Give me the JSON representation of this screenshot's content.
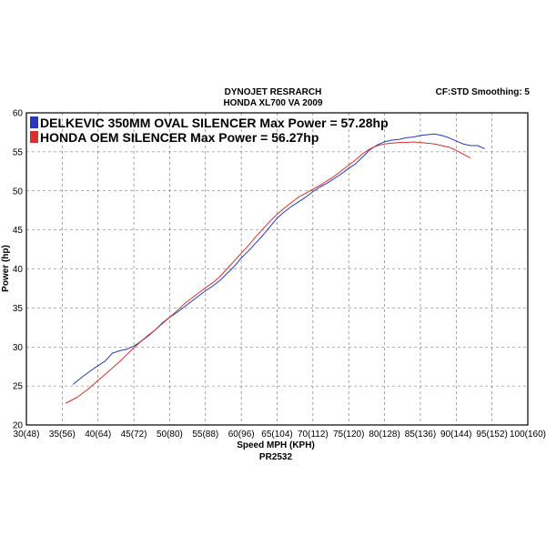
{
  "header": {
    "title_line1": "DYNOJET RESRARCH",
    "title_line2": "HONDA XL700 VA  2009",
    "corner": "CF:STD Smoothing: 5",
    "footer": "PR2532"
  },
  "chart_data": {
    "type": "line",
    "xlabel": "Speed MPH (KPH)",
    "ylabel": "Power (hp)",
    "xlim": [
      30,
      100
    ],
    "ylim": [
      20,
      60
    ],
    "grid": true,
    "legend_position": "top-left",
    "x_tick_values": [
      30,
      35,
      40,
      45,
      50,
      55,
      60,
      65,
      70,
      75,
      80,
      85,
      90,
      95,
      100
    ],
    "x_tick_labels": [
      "30(48)",
      "35(56)",
      "40(64)",
      "45(72)",
      "50(80)",
      "55(88)",
      "60(96)",
      "65(104)",
      "70(112)",
      "75(120)",
      "80(128)",
      "85(136)",
      "90(144)",
      "95(152)",
      "100(160)"
    ],
    "y_tick_values": [
      20,
      25,
      30,
      35,
      40,
      45,
      50,
      55,
      60
    ],
    "y_tick_labels": [
      "20",
      "25",
      "30",
      "35",
      "40",
      "45",
      "50",
      "55",
      "60"
    ],
    "series": [
      {
        "name": "DELKEVIC 350MM OVAL SILENCER  Max Power = 57.28hp",
        "color": "#2b3ab4",
        "x": [
          36.5,
          38,
          39.5,
          41,
          42,
          43,
          44,
          45,
          46,
          47,
          48,
          49,
          50,
          51,
          52,
          53,
          54,
          55,
          56,
          57,
          58,
          59,
          60,
          61,
          62,
          63,
          64,
          65,
          66,
          67,
          68,
          69,
          70,
          71,
          72,
          73,
          74,
          75,
          76,
          77,
          78,
          79,
          80,
          81,
          82,
          83,
          84,
          85,
          86,
          87,
          88,
          89,
          90,
          91,
          92,
          93,
          94
        ],
        "y": [
          25.2,
          26.3,
          27.3,
          28.2,
          29.2,
          29.5,
          29.7,
          30.1,
          30.7,
          31.4,
          32.2,
          33.1,
          33.8,
          34.4,
          35.1,
          35.8,
          36.5,
          37.2,
          37.8,
          38.5,
          39.4,
          40.3,
          41.4,
          42.3,
          43.3,
          44.3,
          45.4,
          46.5,
          47.3,
          48.0,
          48.6,
          49.2,
          49.9,
          50.5,
          51.0,
          51.6,
          52.2,
          52.9,
          53.5,
          54.4,
          55.3,
          55.9,
          56.3,
          56.5,
          56.6,
          56.8,
          56.9,
          57.1,
          57.2,
          57.28,
          57.1,
          56.8,
          56.4,
          56.0,
          55.8,
          55.8,
          55.4
        ]
      },
      {
        "name": "HONDA OEM SILENCER Max Power = 56.27hp",
        "color": "#d23232",
        "x": [
          35.5,
          37,
          38.5,
          40,
          41,
          42,
          43,
          44,
          45,
          46,
          47,
          48,
          49,
          50,
          51,
          52,
          53,
          54,
          55,
          56,
          57,
          58,
          59,
          60,
          61,
          62,
          63,
          64,
          65,
          66,
          67,
          68,
          69,
          70,
          71,
          72,
          73,
          74,
          75,
          76,
          77,
          78,
          79,
          80,
          81,
          82,
          83,
          84,
          85,
          86,
          87,
          88,
          89,
          90,
          91,
          92
        ],
        "y": [
          22.8,
          23.5,
          24.5,
          25.7,
          26.5,
          27.3,
          28.1,
          29.0,
          29.9,
          30.7,
          31.5,
          32.2,
          33.0,
          33.8,
          34.6,
          35.5,
          36.2,
          36.9,
          37.6,
          38.2,
          39.0,
          40.0,
          41.0,
          42.0,
          43.0,
          44.1,
          45.1,
          46.1,
          47.0,
          47.8,
          48.5,
          49.2,
          49.7,
          50.2,
          50.7,
          51.3,
          51.9,
          52.6,
          53.3,
          54.0,
          54.8,
          55.4,
          55.8,
          56.0,
          56.1,
          56.2,
          56.2,
          56.27,
          56.2,
          56.1,
          56.0,
          55.8,
          55.6,
          55.2,
          54.7,
          54.2
        ]
      }
    ]
  }
}
